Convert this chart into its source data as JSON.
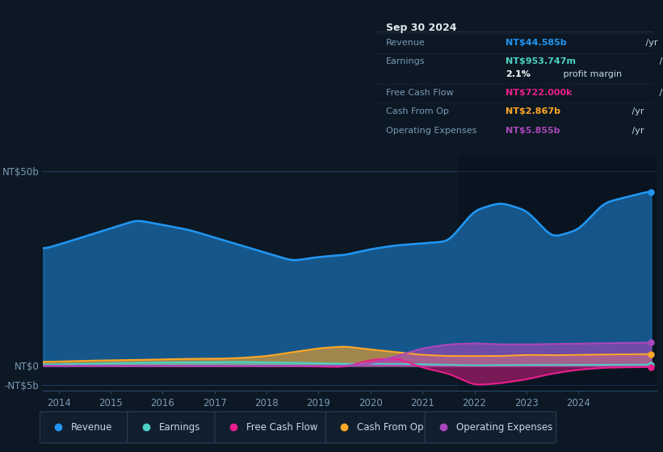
{
  "bg_color": "#0c1824",
  "plot_bg_color": "#0c1824",
  "grid_color": "#1a3048",
  "xlim": [
    2013.7,
    2025.5
  ],
  "ylim": [
    -6500000000.0,
    54000000000.0
  ],
  "xticks": [
    2014,
    2015,
    2016,
    2017,
    2018,
    2019,
    2020,
    2021,
    2022,
    2023,
    2024
  ],
  "legend_items": [
    {
      "label": "Revenue",
      "color": "#2196f3"
    },
    {
      "label": "Earnings",
      "color": "#4dd0c4"
    },
    {
      "label": "Free Cash Flow",
      "color": "#e91e8c"
    },
    {
      "label": "Cash From Op",
      "color": "#ffa726"
    },
    {
      "label": "Operating Expenses",
      "color": "#ab47bc"
    }
  ],
  "info_box": {
    "date": "Sep 30 2024",
    "rows": [
      {
        "label": "Revenue",
        "value": "NT$44.585b",
        "value_color": "#2196f3",
        "suffix": " /yr"
      },
      {
        "label": "Earnings",
        "value": "NT$953.747m",
        "value_color": "#4dd0c4",
        "suffix": " /yr"
      },
      {
        "label": "",
        "value": "2.1%",
        "value_color": "#ffffff",
        "suffix": " profit margin"
      },
      {
        "label": "Free Cash Flow",
        "value": "NT$722.000k",
        "value_color": "#e91e8c",
        "suffix": " /yr"
      },
      {
        "label": "Cash From Op",
        "value": "NT$2.867b",
        "value_color": "#ffa726",
        "suffix": " /yr"
      },
      {
        "label": "Operating Expenses",
        "value": "NT$5.855b",
        "value_color": "#ab47bc",
        "suffix": " /yr"
      }
    ]
  },
  "revenue_color": "#2196f3",
  "earnings_color": "#4dd0c4",
  "fcf_color": "#e91e8c",
  "cashfromop_color": "#ffa726",
  "opex_color": "#ab47bc"
}
